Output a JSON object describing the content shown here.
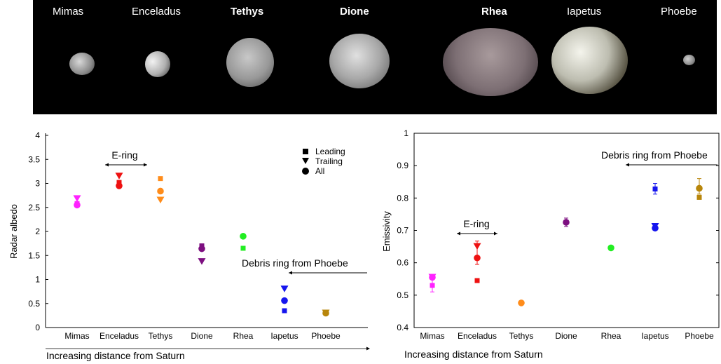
{
  "banner": {
    "moons": [
      {
        "name": "Mimas",
        "bold": false
      },
      {
        "name": "Enceladus",
        "bold": false
      },
      {
        "name": "Tethys",
        "bold": true
      },
      {
        "name": "Dione",
        "bold": true
      },
      {
        "name": "Rhea",
        "bold": true
      },
      {
        "name": "Iapetus",
        "bold": false
      },
      {
        "name": "Phoebe",
        "bold": false
      }
    ]
  },
  "chart_data": [
    {
      "type": "scatter",
      "title": "",
      "xlabel": "",
      "ylabel": "Radar albedo",
      "ylim": [
        0,
        4
      ],
      "yticks": [
        "0",
        "0.5",
        "1",
        "1.5",
        "2",
        "2.5",
        "3",
        "3.5",
        "4"
      ],
      "ytick_values": [
        0,
        0.5,
        1,
        1.5,
        2,
        2.5,
        3,
        3.5,
        4
      ],
      "categories": [
        "Mimas",
        "Enceladus",
        "Tethys",
        "Dione",
        "Rhea",
        "Iapetus",
        "Phoebe"
      ],
      "category_colors": [
        "#ff22ff",
        "#ee1111",
        "#ff8c1a",
        "#7d0f80",
        "#22ee22",
        "#1515ee",
        "#b8860b"
      ],
      "series": [
        {
          "name": "Leading",
          "marker": "square",
          "values": [
            2.58,
            3.02,
            3.1,
            1.7,
            1.65,
            0.35,
            0.3
          ]
        },
        {
          "name": "Trailing",
          "marker": "triangle-down",
          "values": [
            2.68,
            3.15,
            2.65,
            1.37,
            null,
            0.8,
            0.3
          ]
        },
        {
          "name": "All",
          "marker": "circle",
          "values": [
            2.55,
            2.95,
            2.84,
            1.64,
            1.9,
            0.56,
            0.3
          ]
        }
      ],
      "legend": {
        "position": "top-right",
        "entries": [
          "Leading",
          "Trailing",
          "All"
        ]
      },
      "annotations": [
        {
          "text": "E-ring",
          "from": "Enceladus",
          "to": "Tethys"
        },
        {
          "text": "Debris ring from Phoebe"
        }
      ],
      "bottom_note": "Increasing distance from Saturn"
    },
    {
      "type": "scatter",
      "title": "",
      "xlabel": "",
      "ylabel": "Emissivity",
      "ylim": [
        0.4,
        1
      ],
      "yticks": [
        "0.4",
        "0.5",
        "0.6",
        "0.7",
        "0.8",
        "0.9",
        "1"
      ],
      "ytick_values": [
        0.4,
        0.5,
        0.6,
        0.7,
        0.8,
        0.9,
        1.0
      ],
      "categories": [
        "Mimas",
        "Enceladus",
        "Tethys",
        "Dione",
        "Rhea",
        "Iapetus",
        "Phoebe"
      ],
      "category_colors": [
        "#ff22ff",
        "#ee1111",
        "#ff8c1a",
        "#7d0f80",
        "#22ee22",
        "#1515ee",
        "#b8860b"
      ],
      "series": [
        {
          "name": "Leading",
          "marker": "square",
          "values": [
            0.53,
            0.545,
            null,
            null,
            null,
            0.828,
            0.802
          ]
        },
        {
          "name": "Trailing",
          "marker": "triangle-down",
          "values": [
            0.555,
            0.65,
            null,
            null,
            null,
            0.712,
            null
          ]
        },
        {
          "name": "All",
          "marker": "circle",
          "values": [
            0.555,
            0.615,
            0.476,
            0.725,
            0.646,
            0.707,
            0.83
          ]
        }
      ],
      "error_bars": [
        {
          "series": "Leading",
          "category": "Mimas",
          "low": 0.51,
          "high": 0.55
        },
        {
          "series": "All",
          "category": "Enceladus",
          "low": 0.595,
          "high": 0.667
        },
        {
          "series": "All",
          "category": "Dione",
          "low": 0.712,
          "high": 0.738
        },
        {
          "series": "Leading",
          "category": "Iapetus",
          "low": 0.812,
          "high": 0.845
        },
        {
          "series": "All",
          "category": "Phoebe",
          "low": 0.812,
          "high": 0.86
        }
      ],
      "annotations": [
        {
          "text": "E-ring",
          "from": "Enceladus",
          "to": "Tethys"
        },
        {
          "text": "Debris ring from Phoebe"
        }
      ],
      "bottom_note": "Increasing distance from Saturn"
    }
  ]
}
